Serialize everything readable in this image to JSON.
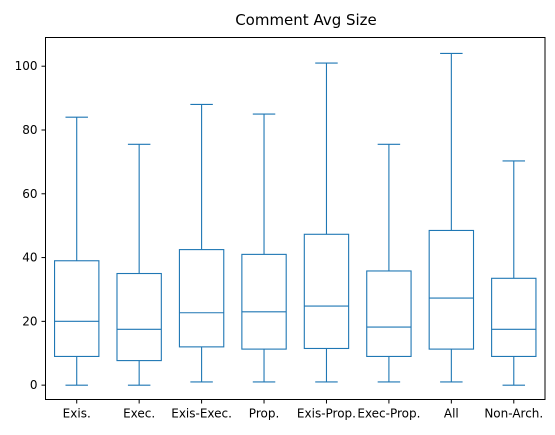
{
  "chart_data": {
    "type": "box",
    "title": "Comment Avg Size",
    "xlabel": "",
    "ylabel": "",
    "ylim": [
      -4.5,
      109
    ],
    "yticks": [
      0,
      20,
      40,
      60,
      80,
      100
    ],
    "grid": false,
    "color": "#1f77b4",
    "categories": [
      "Exis.",
      "Exec.",
      "Exis-Exec.",
      "Prop.",
      "Exis-Prop.",
      "Exec-Prop.",
      "All",
      "Non-Arch."
    ],
    "boxes": [
      {
        "min": 0,
        "q1": 9,
        "median": 20,
        "q3": 39,
        "max": 84
      },
      {
        "min": 0,
        "q1": 7.7,
        "median": 17.5,
        "q3": 35,
        "max": 75.5
      },
      {
        "min": 1,
        "q1": 12,
        "median": 22.7,
        "q3": 42.5,
        "max": 88
      },
      {
        "min": 1,
        "q1": 11.3,
        "median": 23,
        "q3": 41,
        "max": 85
      },
      {
        "min": 1,
        "q1": 11.5,
        "median": 24.8,
        "q3": 47.3,
        "max": 101
      },
      {
        "min": 1,
        "q1": 9,
        "median": 18.2,
        "q3": 35.8,
        "max": 75.5
      },
      {
        "min": 1,
        "q1": 11.3,
        "median": 27.3,
        "q3": 48.5,
        "max": 104
      },
      {
        "min": 0,
        "q1": 9,
        "median": 17.5,
        "q3": 33.5,
        "max": 70.3
      }
    ]
  }
}
